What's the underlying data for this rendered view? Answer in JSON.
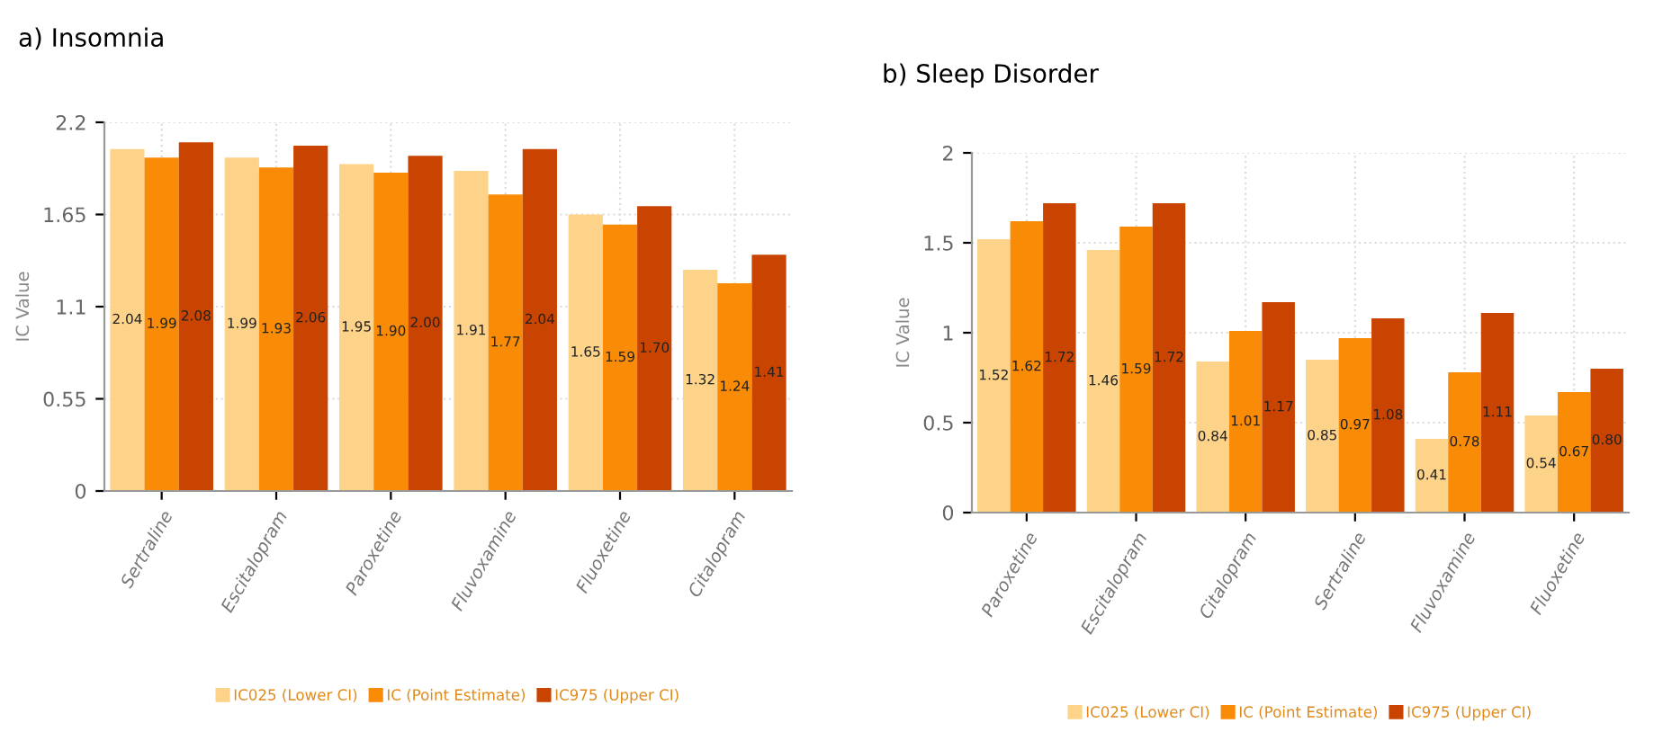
{
  "chart_data": [
    {
      "type": "bar",
      "title": "a) Insomnia",
      "ylabel": "IC Value",
      "categories": [
        "Sertraline",
        "Escitalopram",
        "Paroxetine",
        "Fluvoxamine",
        "Fluoxetine",
        "Citalopram"
      ],
      "series": [
        {
          "name": "IC025 (Lower CI)",
          "color": "#fdd38a",
          "values": [
            2.04,
            1.99,
            1.95,
            1.91,
            1.65,
            1.32
          ],
          "value_labels": [
            "2.04",
            "1.99",
            "1.95",
            "1.91",
            "1.65",
            "1.32"
          ]
        },
        {
          "name": "IC (Point Estimate)",
          "color": "#f98b06",
          "values": [
            1.99,
            1.93,
            1.9,
            1.77,
            1.59,
            1.24
          ],
          "value_labels": [
            "1.99",
            "1.93",
            "1.90",
            "1.77",
            "1.59",
            "1.24"
          ]
        },
        {
          "name": "IC975 (Upper CI)",
          "color": "#c94400",
          "values": [
            2.08,
            2.06,
            2.0,
            2.04,
            1.7,
            1.41
          ],
          "value_labels": [
            "2.08",
            "2.06",
            "2.00",
            "2.04",
            "1.70",
            "1.41"
          ]
        }
      ],
      "ylim": [
        0,
        2.2
      ],
      "yticks": [
        0,
        0.55,
        1.1,
        1.65,
        2.2
      ],
      "grid": true,
      "legend": "bottom"
    },
    {
      "type": "bar",
      "title": "b) Sleep Disorder",
      "ylabel": "IC Value",
      "categories": [
        "Paroxetine",
        "Escitalopram",
        "Citalopram",
        "Sertraline",
        "Fluvoxamine",
        "Fluoxetine"
      ],
      "series": [
        {
          "name": "IC025 (Lower CI)",
          "color": "#fdd38a",
          "values": [
            1.52,
            1.46,
            0.84,
            0.85,
            0.41,
            0.54
          ],
          "value_labels": [
            "1.52",
            "1.46",
            "0.84",
            "0.85",
            "0.41",
            "0.54"
          ]
        },
        {
          "name": "IC (Point Estimate)",
          "color": "#f98b06",
          "values": [
            1.62,
            1.59,
            1.01,
            0.97,
            0.78,
            0.67
          ],
          "value_labels": [
            "1.62",
            "1.59",
            "1.01",
            "0.97",
            "0.78",
            "0.67"
          ]
        },
        {
          "name": "IC975 (Upper CI)",
          "color": "#c94400",
          "values": [
            1.72,
            1.72,
            1.17,
            1.08,
            1.11,
            0.8
          ],
          "value_labels": [
            "1.72",
            "1.72",
            "1.17",
            "1.08",
            "1.11",
            "0.80"
          ]
        }
      ],
      "ylim": [
        0,
        2
      ],
      "yticks": [
        0,
        0.5,
        1,
        1.5,
        2
      ],
      "grid": true,
      "legend": "bottom"
    }
  ]
}
